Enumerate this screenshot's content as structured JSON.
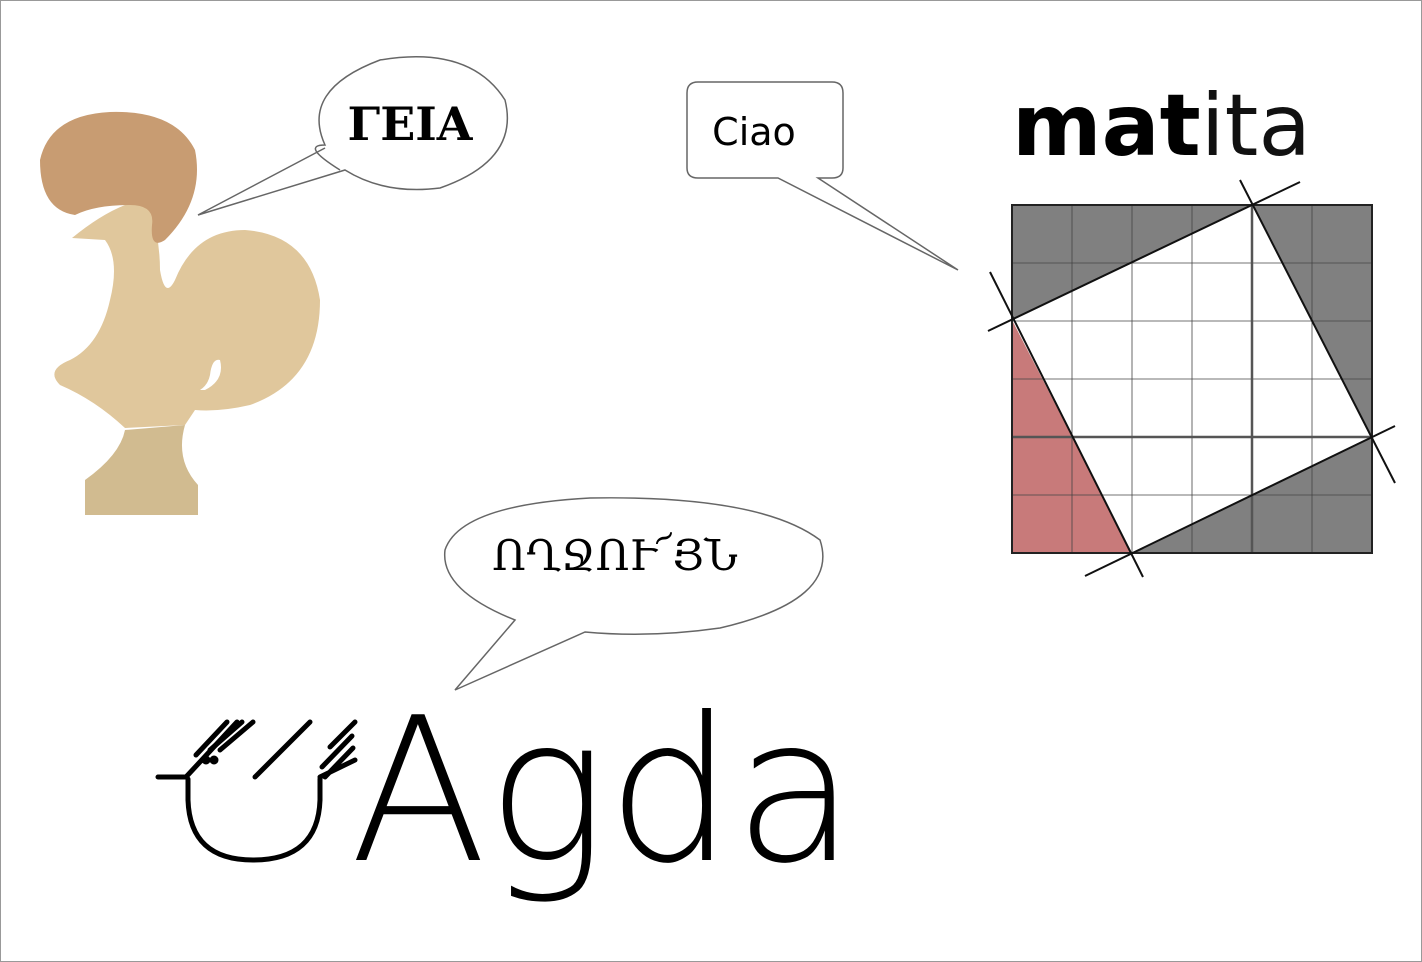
{
  "bubbles": [
    {
      "text": "ΓΕΙΑ"
    },
    {
      "text": "Ciao"
    },
    {
      "text": "ՈՂՋՈՒ՜ՅՆ"
    }
  ],
  "logos": {
    "matita": {
      "bold": "mat",
      "light": "ita"
    },
    "agda": "Agda"
  }
}
